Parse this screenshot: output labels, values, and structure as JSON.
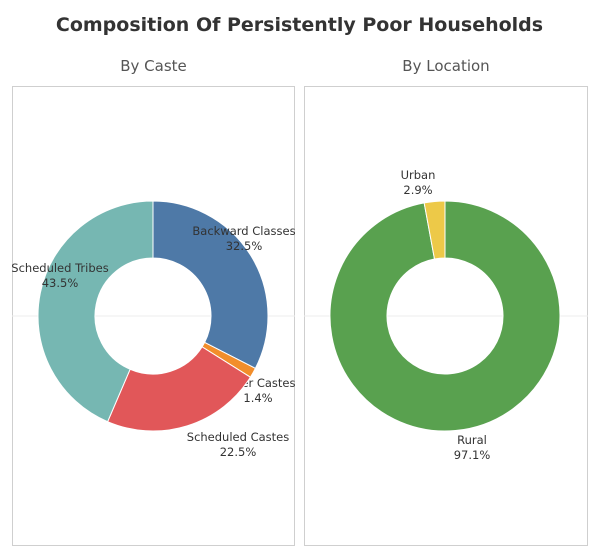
{
  "title": "Composition Of Persistently Poor Households",
  "chart_data": [
    {
      "type": "pie",
      "subtitle": "By Caste",
      "slices": [
        {
          "name": "Backward Classes",
          "label": "Backward Classes",
          "value": 32.5,
          "display": "32.5%",
          "color": "#4e79a7"
        },
        {
          "name": "Other Castes",
          "label": "Other Castes",
          "value": 1.4,
          "display": "1.4%",
          "color": "#f28e2b"
        },
        {
          "name": "Scheduled Castes",
          "label": "Scheduled Castes",
          "value": 22.5,
          "display": "22.5%",
          "color": "#e15759"
        },
        {
          "name": "Scheduled Tribes",
          "label": "Scheduled Tribes",
          "value": 43.5,
          "display": "43.5%",
          "color": "#76b7b2"
        }
      ]
    },
    {
      "type": "pie",
      "subtitle": "By Location",
      "slices": [
        {
          "name": "Rural",
          "label": "Rural",
          "value": 97.1,
          "display": "97.1%",
          "color": "#59a14f"
        },
        {
          "name": "Urban",
          "label": "Urban",
          "value": 2.9,
          "display": "2.9%",
          "color": "#edc948"
        }
      ]
    }
  ]
}
